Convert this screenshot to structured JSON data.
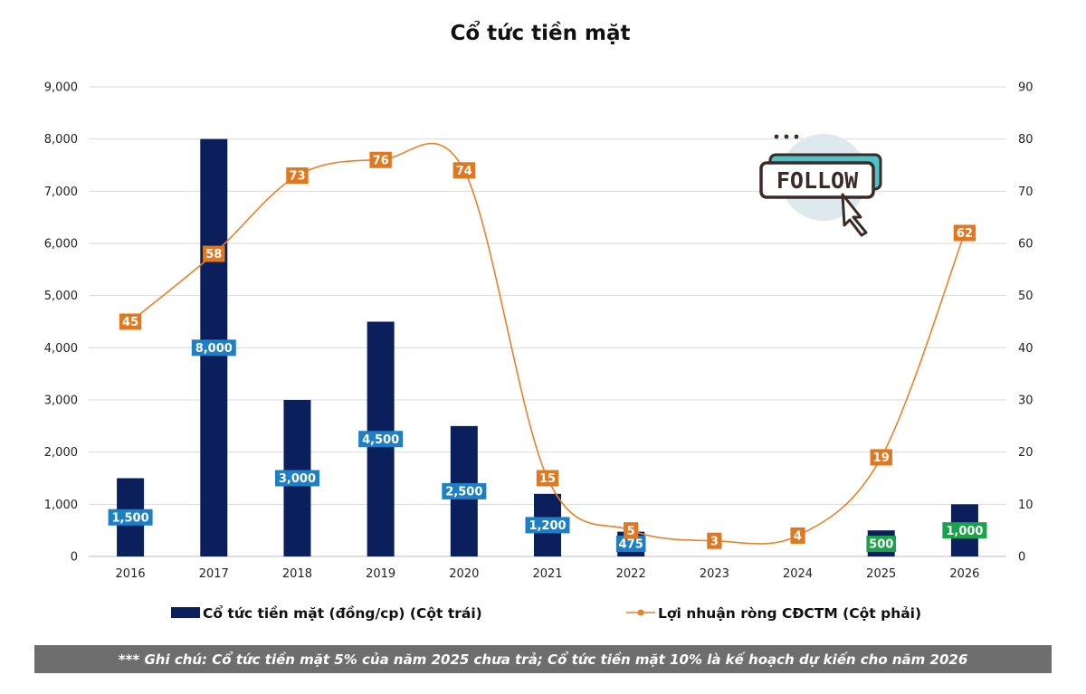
{
  "chart_data": {
    "type": "bar+line",
    "title": "Cổ tức tiền mặt",
    "categories": [
      "2016",
      "2017",
      "2018",
      "2019",
      "2020",
      "2021",
      "2022",
      "2023",
      "2024",
      "2025",
      "2026"
    ],
    "series": [
      {
        "name": "Cổ tức tiền mặt (đồng/cp) (Cột trái)",
        "type": "bar",
        "axis": "left",
        "color": "#0a1f5c",
        "values": [
          1500,
          8000,
          3000,
          4500,
          2500,
          1200,
          475,
          null,
          null,
          500,
          1000
        ],
        "labels": [
          "1,500",
          "8,000",
          "3,000",
          "4,500",
          "2,500",
          "1,200",
          "475",
          "",
          "",
          "500",
          "1,000"
        ],
        "label_colors": [
          "#1f7fc4",
          "#1f7fc4",
          "#1f7fc4",
          "#1f7fc4",
          "#1f7fc4",
          "#1f7fc4",
          "#1f7fc4",
          "",
          "",
          "#1aa34a",
          "#1aa34a"
        ]
      },
      {
        "name": "Lợi nhuận ròng CĐCTM (Cột phải)",
        "type": "line",
        "axis": "right",
        "color": "#e8822a",
        "label_color": "#e07820",
        "smooth": true,
        "values": [
          45,
          58,
          73,
          76,
          74,
          15,
          5,
          3,
          4,
          19,
          62
        ],
        "labels": [
          "45",
          "58",
          "73",
          "76",
          "74",
          "15",
          "5",
          "3",
          "4",
          "19",
          "62"
        ]
      }
    ],
    "y_left": {
      "range": [
        0,
        9000
      ],
      "ticks": [
        "0",
        "1,000",
        "2,000",
        "3,000",
        "4,000",
        "5,000",
        "6,000",
        "7,000",
        "8,000",
        "9,000"
      ]
    },
    "y_right": {
      "range": [
        0,
        90
      ],
      "ticks": [
        "0",
        "10",
        "20",
        "30",
        "40",
        "50",
        "60",
        "70",
        "80",
        "90"
      ]
    },
    "grid": true,
    "legend_position": "bottom"
  },
  "note": "*** Ghi chú: Cổ tức tiền mặt 5% của năm 2025 chưa trả; Cổ tức tiền mặt 10% là kế hoạch dự kiến cho năm 2026",
  "badge": {
    "text": "FOLLOW",
    "colors": {
      "dark": "#3a2b28",
      "accent": "#4fc3c8",
      "circle": "#dde9ec"
    }
  }
}
